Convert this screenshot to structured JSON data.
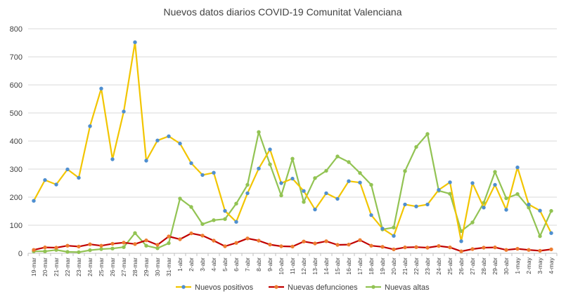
{
  "chart_data": {
    "type": "line",
    "title": "Nuevos datos diarios COVID-19 Comunitat Valenciana",
    "ylim": [
      0,
      800
    ],
    "yticks": [
      0,
      100,
      200,
      300,
      400,
      500,
      600,
      700,
      800
    ],
    "grid": true,
    "legend_position": "bottom",
    "categories": [
      "19-mar",
      "20-mar",
      "21-mar",
      "22-mar",
      "23-mar",
      "24-mar",
      "25-mar",
      "26-mar",
      "27-mar",
      "28-mar",
      "29-mar",
      "30-mar",
      "31-mar",
      "1-abr",
      "2-abr",
      "3-abr",
      "4-abr",
      "5-abr",
      "6-abr",
      "7-abr",
      "8-abr",
      "9-abr",
      "10-abr",
      "11-abr",
      "12-abr",
      "13-abr",
      "14-abr",
      "15-abr",
      "16-abr",
      "17-abr",
      "18-abr",
      "19-abr",
      "20-abr",
      "21-abr",
      "22-abr",
      "23-abr",
      "24-abr",
      "25-abr",
      "26-abr",
      "27-abr",
      "28-abr",
      "29-abr",
      "30-abr",
      "1-may",
      "2-may",
      "3-may",
      "4-may"
    ],
    "series": [
      {
        "name": "Nuevos positivos",
        "line_color": "#F2C500",
        "marker_color": "#4F8FD0",
        "values": [
          187,
          261,
          245,
          299,
          269,
          453,
          587,
          335,
          505,
          752,
          330,
          402,
          417,
          391,
          321,
          279,
          287,
          151,
          112,
          214,
          302,
          370,
          250,
          266,
          222,
          156,
          214,
          194,
          257,
          252,
          136,
          88,
          62,
          174,
          167,
          174,
          226,
          253,
          43,
          250,
          163,
          244,
          155,
          306,
          174,
          152,
          72
        ]
      },
      {
        "name": "Nuevas defunciones",
        "line_color": "#C00000",
        "marker_color": "#ED7D31",
        "values": [
          12,
          21,
          20,
          27,
          24,
          32,
          27,
          34,
          38,
          33,
          46,
          30,
          60,
          50,
          71,
          63,
          45,
          25,
          37,
          53,
          45,
          31,
          25,
          24,
          42,
          35,
          43,
          30,
          31,
          47,
          27,
          23,
          14,
          21,
          22,
          20,
          26,
          21,
          7,
          15,
          20,
          21,
          12,
          16,
          12,
          9,
          14
        ]
      },
      {
        "name": "Nuevas altas",
        "line_color": "#92C353",
        "marker_color": "#92C353",
        "values": [
          7,
          7,
          12,
          5,
          4,
          11,
          15,
          17,
          22,
          72,
          27,
          18,
          36,
          195,
          165,
          104,
          118,
          122,
          177,
          244,
          432,
          317,
          206,
          337,
          183,
          268,
          294,
          345,
          325,
          286,
          244,
          85,
          92,
          293,
          379,
          425,
          223,
          212,
          79,
          110,
          180,
          290,
          196,
          211,
          163,
          61,
          151
        ]
      }
    ]
  }
}
